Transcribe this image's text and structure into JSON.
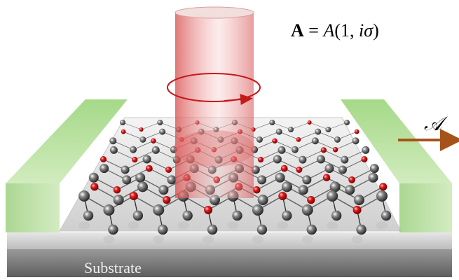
{
  "equation": {
    "vector": "A",
    "equals": " = ",
    "amplitude": "A",
    "open": "(1, ",
    "imag": "i",
    "sigma": "σ",
    "close": ")"
  },
  "current_label": "𝒜",
  "substrate_label": "Substrate"
}
